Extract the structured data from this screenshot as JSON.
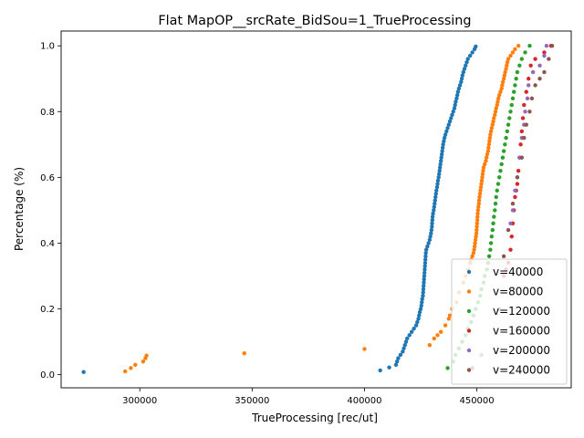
{
  "chart_data": {
    "type": "scatter",
    "title": "Flat MapOP__srcRate_BidSou=1_TrueProcessing",
    "xlabel": "TrueProcessing [rec/ut]",
    "ylabel": "Percentage (%)",
    "xlim": [
      265000,
      492000
    ],
    "ylim": [
      -0.04,
      1.045
    ],
    "xticks": [
      300000,
      350000,
      400000,
      450000
    ],
    "xtick_labels": [
      "300000",
      "350000",
      "400000",
      "450000"
    ],
    "yticks": [
      0.0,
      0.2,
      0.4,
      0.6,
      0.8,
      1.0
    ],
    "ytick_labels": [
      "0.0",
      "0.2",
      "0.4",
      "0.6",
      "0.8",
      "1.0"
    ],
    "grid": false,
    "legend_position": "lower-right",
    "series": [
      {
        "name": "v=40000",
        "color": "#1f77b4",
        "points": [
          [
            275000,
            0.008
          ],
          [
            407000,
            0.013
          ],
          [
            411000,
            0.022
          ],
          [
            414000,
            0.03
          ],
          [
            414500,
            0.04
          ],
          [
            415000,
            0.05
          ],
          [
            416000,
            0.06
          ],
          [
            417000,
            0.07
          ],
          [
            417500,
            0.08
          ],
          [
            418000,
            0.09
          ],
          [
            418500,
            0.1
          ],
          [
            419000,
            0.11
          ],
          [
            420000,
            0.12
          ],
          [
            421000,
            0.13
          ],
          [
            422000,
            0.14
          ],
          [
            423000,
            0.15
          ],
          [
            423500,
            0.16
          ],
          [
            424000,
            0.17
          ],
          [
            424300,
            0.18
          ],
          [
            424600,
            0.19
          ],
          [
            425000,
            0.2
          ],
          [
            425300,
            0.21
          ],
          [
            425500,
            0.22
          ],
          [
            425700,
            0.23
          ],
          [
            426000,
            0.24
          ],
          [
            426100,
            0.25
          ],
          [
            426200,
            0.26
          ],
          [
            426300,
            0.27
          ],
          [
            426400,
            0.28
          ],
          [
            426500,
            0.29
          ],
          [
            426600,
            0.3
          ],
          [
            426700,
            0.31
          ],
          [
            426800,
            0.32
          ],
          [
            426900,
            0.33
          ],
          [
            427000,
            0.34
          ],
          [
            427100,
            0.35
          ],
          [
            427200,
            0.36
          ],
          [
            427300,
            0.37
          ],
          [
            427500,
            0.38
          ],
          [
            428000,
            0.39
          ],
          [
            428500,
            0.4
          ],
          [
            429000,
            0.41
          ],
          [
            429300,
            0.42
          ],
          [
            429600,
            0.43
          ],
          [
            429800,
            0.44
          ],
          [
            430000,
            0.45
          ],
          [
            430100,
            0.46
          ],
          [
            430200,
            0.47
          ],
          [
            430300,
            0.48
          ],
          [
            430500,
            0.49
          ],
          [
            430800,
            0.5
          ],
          [
            431000,
            0.51
          ],
          [
            431200,
            0.52
          ],
          [
            431400,
            0.53
          ],
          [
            431600,
            0.54
          ],
          [
            431800,
            0.55
          ],
          [
            432000,
            0.56
          ],
          [
            432300,
            0.57
          ],
          [
            432500,
            0.58
          ],
          [
            432700,
            0.59
          ],
          [
            433000,
            0.6
          ],
          [
            433200,
            0.61
          ],
          [
            433400,
            0.62
          ],
          [
            433600,
            0.63
          ],
          [
            433800,
            0.64
          ],
          [
            434000,
            0.65
          ],
          [
            434200,
            0.66
          ],
          [
            434400,
            0.67
          ],
          [
            434600,
            0.68
          ],
          [
            434800,
            0.69
          ],
          [
            435000,
            0.7
          ],
          [
            435300,
            0.71
          ],
          [
            435600,
            0.72
          ],
          [
            436000,
            0.73
          ],
          [
            436500,
            0.74
          ],
          [
            437000,
            0.75
          ],
          [
            437500,
            0.76
          ],
          [
            438000,
            0.77
          ],
          [
            438500,
            0.78
          ],
          [
            439000,
            0.79
          ],
          [
            439500,
            0.8
          ],
          [
            440000,
            0.81
          ],
          [
            440300,
            0.82
          ],
          [
            440600,
            0.83
          ],
          [
            441000,
            0.84
          ],
          [
            441300,
            0.85
          ],
          [
            441600,
            0.86
          ],
          [
            442000,
            0.87
          ],
          [
            442500,
            0.88
          ],
          [
            443000,
            0.89
          ],
          [
            443300,
            0.9
          ],
          [
            443600,
            0.91
          ],
          [
            444000,
            0.92
          ],
          [
            444500,
            0.93
          ],
          [
            445000,
            0.94
          ],
          [
            445500,
            0.95
          ],
          [
            446000,
            0.96
          ],
          [
            447000,
            0.97
          ],
          [
            448000,
            0.98
          ],
          [
            449000,
            0.99
          ],
          [
            449500,
            0.998
          ]
        ]
      },
      {
        "name": "v=80000",
        "color": "#ff7f0e",
        "points": [
          [
            293500,
            0.01
          ],
          [
            296000,
            0.02
          ],
          [
            298000,
            0.03
          ],
          [
            301500,
            0.04
          ],
          [
            302500,
            0.05
          ],
          [
            303000,
            0.058
          ],
          [
            346500,
            0.065
          ],
          [
            400000,
            0.078
          ],
          [
            429000,
            0.09
          ],
          [
            431000,
            0.11
          ],
          [
            432500,
            0.12
          ],
          [
            434000,
            0.13
          ],
          [
            436000,
            0.15
          ],
          [
            437500,
            0.17
          ],
          [
            438000,
            0.18
          ],
          [
            439000,
            0.2
          ],
          [
            441000,
            0.22
          ],
          [
            442000,
            0.25
          ],
          [
            444000,
            0.28
          ],
          [
            445000,
            0.3
          ],
          [
            446000,
            0.32
          ],
          [
            447000,
            0.34
          ],
          [
            447500,
            0.35
          ],
          [
            448000,
            0.36
          ],
          [
            448500,
            0.37
          ],
          [
            448800,
            0.38
          ],
          [
            449000,
            0.39
          ],
          [
            449200,
            0.4
          ],
          [
            449400,
            0.41
          ],
          [
            449600,
            0.42
          ],
          [
            449800,
            0.43
          ],
          [
            449900,
            0.44
          ],
          [
            450000,
            0.45
          ],
          [
            450100,
            0.46
          ],
          [
            450200,
            0.47
          ],
          [
            450300,
            0.48
          ],
          [
            450400,
            0.49
          ],
          [
            450500,
            0.5
          ],
          [
            450700,
            0.51
          ],
          [
            450900,
            0.52
          ],
          [
            451000,
            0.53
          ],
          [
            451200,
            0.54
          ],
          [
            451400,
            0.55
          ],
          [
            451600,
            0.56
          ],
          [
            451800,
            0.57
          ],
          [
            452000,
            0.58
          ],
          [
            452200,
            0.59
          ],
          [
            452400,
            0.6
          ],
          [
            452600,
            0.61
          ],
          [
            452800,
            0.62
          ],
          [
            453000,
            0.63
          ],
          [
            453500,
            0.64
          ],
          [
            454000,
            0.65
          ],
          [
            454300,
            0.66
          ],
          [
            454600,
            0.67
          ],
          [
            455000,
            0.68
          ],
          [
            455200,
            0.69
          ],
          [
            455400,
            0.7
          ],
          [
            455600,
            0.71
          ],
          [
            455800,
            0.72
          ],
          [
            456000,
            0.73
          ],
          [
            456300,
            0.74
          ],
          [
            456600,
            0.75
          ],
          [
            457000,
            0.76
          ],
          [
            457300,
            0.77
          ],
          [
            457600,
            0.78
          ],
          [
            458000,
            0.79
          ],
          [
            458300,
            0.8
          ],
          [
            458600,
            0.81
          ],
          [
            459000,
            0.82
          ],
          [
            459300,
            0.83
          ],
          [
            459600,
            0.84
          ],
          [
            460000,
            0.85
          ],
          [
            460500,
            0.86
          ],
          [
            461000,
            0.87
          ],
          [
            461300,
            0.88
          ],
          [
            461600,
            0.89
          ],
          [
            462000,
            0.9
          ],
          [
            462300,
            0.91
          ],
          [
            462600,
            0.92
          ],
          [
            463000,
            0.93
          ],
          [
            463300,
            0.94
          ],
          [
            463600,
            0.95
          ],
          [
            464000,
            0.96
          ],
          [
            465000,
            0.97
          ],
          [
            466000,
            0.98
          ],
          [
            467000,
            0.99
          ],
          [
            468500,
            1.0
          ]
        ]
      },
      {
        "name": "v=120000",
        "color": "#2ca02c",
        "points": [
          [
            437000,
            0.02
          ],
          [
            439500,
            0.04
          ],
          [
            440500,
            0.06
          ],
          [
            442000,
            0.08
          ],
          [
            443500,
            0.1
          ],
          [
            445000,
            0.12
          ],
          [
            446000,
            0.14
          ],
          [
            447500,
            0.16
          ],
          [
            448500,
            0.18
          ],
          [
            449500,
            0.2
          ],
          [
            450500,
            0.22
          ],
          [
            451500,
            0.24
          ],
          [
            452000,
            0.26
          ],
          [
            453000,
            0.28
          ],
          [
            453500,
            0.3
          ],
          [
            454500,
            0.32
          ],
          [
            455000,
            0.34
          ],
          [
            455500,
            0.36
          ],
          [
            456000,
            0.38
          ],
          [
            456300,
            0.4
          ],
          [
            456600,
            0.42
          ],
          [
            457000,
            0.44
          ],
          [
            457300,
            0.46
          ],
          [
            457600,
            0.48
          ],
          [
            458000,
            0.5
          ],
          [
            458300,
            0.52
          ],
          [
            458600,
            0.54
          ],
          [
            459000,
            0.56
          ],
          [
            459500,
            0.58
          ],
          [
            460000,
            0.6
          ],
          [
            460500,
            0.62
          ],
          [
            461000,
            0.64
          ],
          [
            461500,
            0.66
          ],
          [
            462000,
            0.68
          ],
          [
            462500,
            0.7
          ],
          [
            463000,
            0.72
          ],
          [
            463500,
            0.74
          ],
          [
            464000,
            0.76
          ],
          [
            464500,
            0.78
          ],
          [
            465000,
            0.8
          ],
          [
            465500,
            0.82
          ],
          [
            466000,
            0.84
          ],
          [
            466500,
            0.86
          ],
          [
            467000,
            0.88
          ],
          [
            467500,
            0.9
          ],
          [
            468000,
            0.92
          ],
          [
            469000,
            0.94
          ],
          [
            470000,
            0.96
          ],
          [
            471500,
            0.98
          ],
          [
            473500,
            1.0
          ]
        ]
      },
      {
        "name": "v=160000",
        "color": "#d62728",
        "points": [
          [
            462000,
            0.3
          ],
          [
            463000,
            0.32
          ],
          [
            464000,
            0.34
          ],
          [
            465000,
            0.38
          ],
          [
            465500,
            0.42
          ],
          [
            466000,
            0.46
          ],
          [
            466500,
            0.5
          ],
          [
            467000,
            0.54
          ],
          [
            467500,
            0.56
          ],
          [
            468000,
            0.58
          ],
          [
            468500,
            0.62
          ],
          [
            469000,
            0.66
          ],
          [
            469500,
            0.7
          ],
          [
            470000,
            0.74
          ],
          [
            470500,
            0.78
          ],
          [
            471000,
            0.82
          ],
          [
            472000,
            0.86
          ],
          [
            473000,
            0.9
          ],
          [
            474000,
            0.94
          ],
          [
            476000,
            0.96
          ],
          [
            480000,
            0.98
          ],
          [
            483000,
            1.0
          ]
        ]
      },
      {
        "name": "v=200000",
        "color": "#9467bd",
        "points": [
          [
            452000,
            0.06
          ],
          [
            460000,
            0.2
          ],
          [
            465000,
            0.46
          ],
          [
            466000,
            0.5
          ],
          [
            467000,
            0.56
          ],
          [
            468000,
            0.6
          ],
          [
            469000,
            0.66
          ],
          [
            470000,
            0.72
          ],
          [
            471000,
            0.76
          ],
          [
            471500,
            0.8
          ],
          [
            472500,
            0.84
          ],
          [
            473000,
            0.88
          ],
          [
            475000,
            0.92
          ],
          [
            478000,
            0.94
          ],
          [
            480000,
            0.97
          ],
          [
            481000,
            1.0
          ]
        ]
      },
      {
        "name": "v=240000",
        "color": "#8c564b",
        "points": [
          [
            448000,
            0.02
          ],
          [
            462000,
            0.36
          ],
          [
            464000,
            0.44
          ],
          [
            466000,
            0.52
          ],
          [
            468000,
            0.6
          ],
          [
            470000,
            0.66
          ],
          [
            471000,
            0.72
          ],
          [
            472000,
            0.76
          ],
          [
            473500,
            0.8
          ],
          [
            474500,
            0.84
          ],
          [
            476000,
            0.88
          ],
          [
            478000,
            0.9
          ],
          [
            480000,
            0.92
          ],
          [
            482000,
            0.96
          ],
          [
            483500,
            1.0
          ]
        ]
      }
    ]
  }
}
